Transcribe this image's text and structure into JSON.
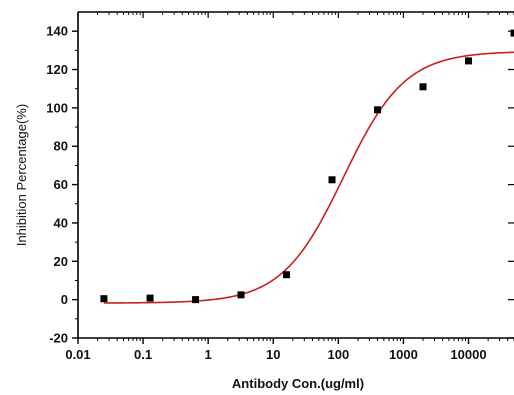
{
  "chart_data": {
    "type": "scatter",
    "title": "",
    "xlabel": "Antibody Con.(ug/ml)",
    "ylabel": "Inhibition Percentage(%)",
    "x_scale": "log",
    "xlim": [
      0.01,
      50000
    ],
    "ylim": [
      -20,
      150
    ],
    "x_ticks": [
      {
        "value": 0.01,
        "label": "0.01"
      },
      {
        "value": 0.1,
        "label": "0.1"
      },
      {
        "value": 1,
        "label": "1"
      },
      {
        "value": 10,
        "label": "10"
      },
      {
        "value": 100,
        "label": "100"
      },
      {
        "value": 1000,
        "label": "1000"
      },
      {
        "value": 10000,
        "label": "10000"
      }
    ],
    "y_ticks": [
      {
        "value": -20,
        "label": "-20"
      },
      {
        "value": 0,
        "label": "0"
      },
      {
        "value": 20,
        "label": "20"
      },
      {
        "value": 40,
        "label": "40"
      },
      {
        "value": 60,
        "label": "60"
      },
      {
        "value": 80,
        "label": "80"
      },
      {
        "value": 100,
        "label": "100"
      },
      {
        "value": 120,
        "label": "120"
      },
      {
        "value": 140,
        "label": "140"
      }
    ],
    "points": [
      {
        "x": 0.025,
        "y": 0.5
      },
      {
        "x": 0.128,
        "y": 0.8
      },
      {
        "x": 0.64,
        "y": 0
      },
      {
        "x": 3.2,
        "y": 2.5
      },
      {
        "x": 16,
        "y": 13
      },
      {
        "x": 80,
        "y": 62.5
      },
      {
        "x": 400,
        "y": 99
      },
      {
        "x": 2000,
        "y": 111
      },
      {
        "x": 10000,
        "y": 124.5
      },
      {
        "x": 50000,
        "y": 139
      }
    ],
    "fit_curve": {
      "type": "4PL",
      "bottom": -1.8,
      "top": 129.5,
      "ec50": 120,
      "hill": 0.92
    },
    "colors": {
      "points": "#000000",
      "fit_line": "#cc1f1f",
      "axis": "#000000"
    },
    "grid": false,
    "legend": "none"
  }
}
